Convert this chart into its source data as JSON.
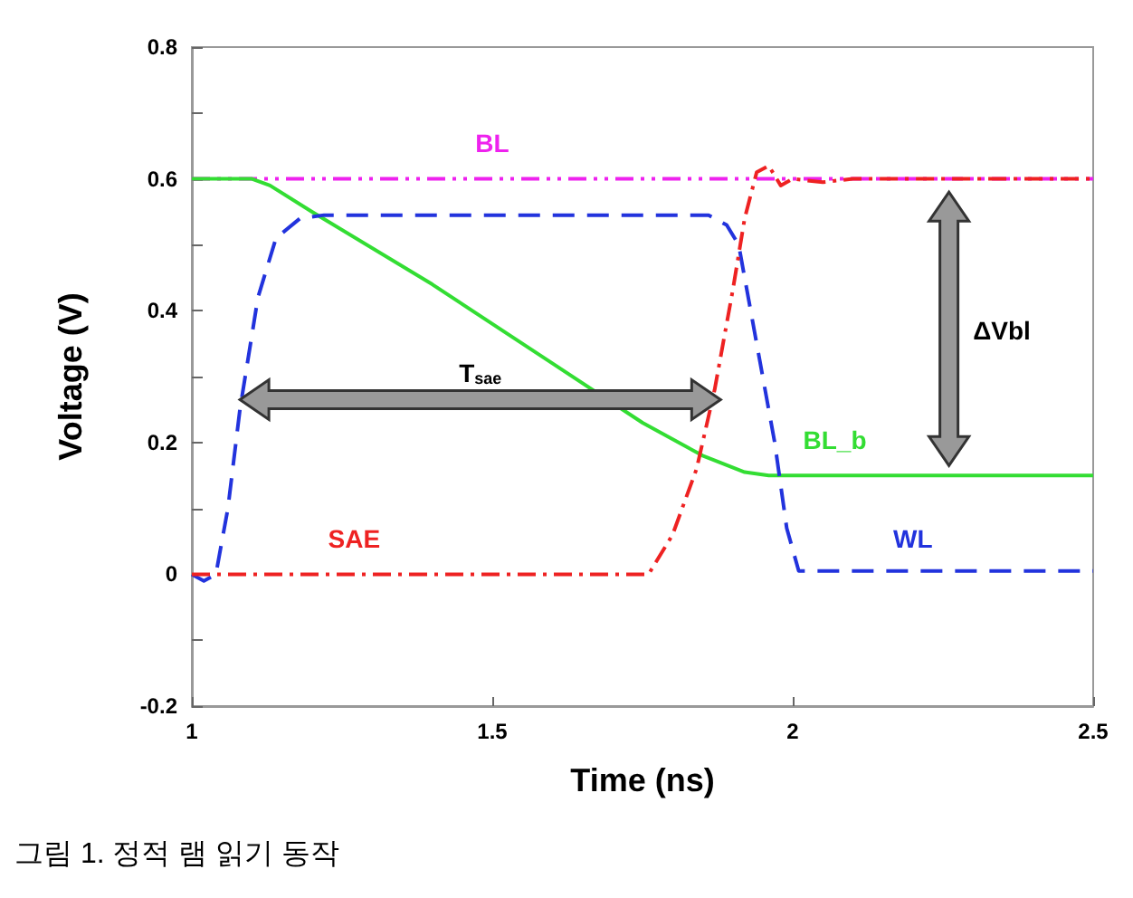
{
  "chart_data": {
    "type": "line",
    "xlabel": "Time (ns)",
    "ylabel": "Voltage (V)",
    "xlim": [
      1,
      2.5
    ],
    "xticks": [
      1,
      1.5,
      2,
      2.5
    ],
    "ylim": [
      -0.2,
      0.8
    ],
    "yticks": [
      -0.2,
      {
        "value": -0.1,
        "label": null
      },
      0,
      {
        "value": 0.1,
        "label": null
      },
      0.2,
      {
        "value": 0.3,
        "label": null
      },
      0.4,
      {
        "value": 0.5,
        "label": null
      },
      0.6,
      {
        "value": 0.7,
        "label": null
      },
      0.8
    ],
    "grid": false,
    "legend": false,
    "marker": "none",
    "series": [
      {
        "name": "BL",
        "color": "#ee22ee",
        "line_style": "dashdotdot",
        "x": [
          1,
          2.5
        ],
        "values": [
          0.6,
          0.6
        ]
      },
      {
        "name": "BL_b",
        "color": "#33dd33",
        "line_style": "solid",
        "x": [
          1,
          1.1,
          1.13,
          1.2,
          1.4,
          1.6,
          1.75,
          1.85,
          1.92,
          1.96,
          2.5
        ],
        "values": [
          0.6,
          0.6,
          0.59,
          0.55,
          0.44,
          0.32,
          0.23,
          0.18,
          0.155,
          0.15,
          0.15
        ]
      },
      {
        "name": "WL",
        "color": "#2233dd",
        "line_style": "dashed",
        "x": [
          1,
          1.02,
          1.04,
          1.06,
          1.08,
          1.11,
          1.14,
          1.18,
          1.22,
          1.86,
          1.89,
          1.91,
          1.94,
          1.97,
          1.99,
          2.01,
          2.5
        ],
        "values": [
          0,
          -0.01,
          0,
          0.1,
          0.25,
          0.42,
          0.51,
          0.54,
          0.545,
          0.545,
          0.53,
          0.5,
          0.35,
          0.2,
          0.07,
          0.005,
          0.005
        ]
      },
      {
        "name": "SAE",
        "color": "#ee2222",
        "line_style": "dashdot",
        "x": [
          1,
          1.76,
          1.8,
          1.84,
          1.87,
          1.9,
          1.92,
          1.94,
          1.96,
          1.98,
          2.0,
          2.05,
          2.1,
          2.5
        ],
        "values": [
          0,
          0,
          0.06,
          0.16,
          0.28,
          0.43,
          0.54,
          0.61,
          0.62,
          0.59,
          0.6,
          0.595,
          0.6,
          0.6
        ]
      }
    ],
    "annotations": [
      "T$_{sae}$",
      "ΔVbl",
      "그림 1. 정적 램 읽기 동작"
    ]
  }
}
